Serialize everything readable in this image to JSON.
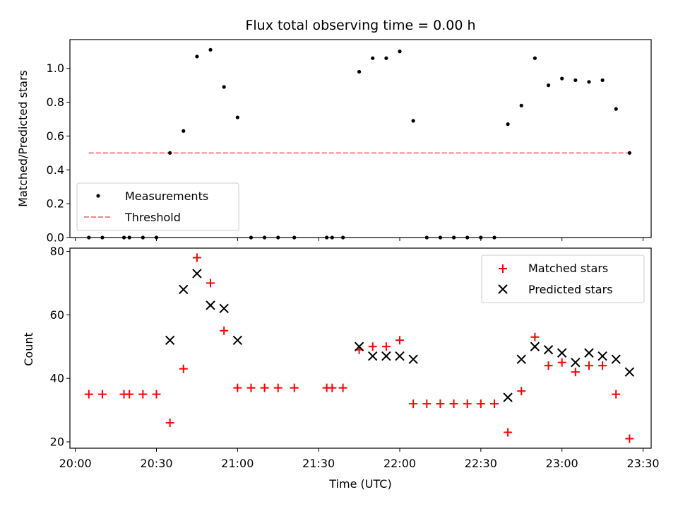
{
  "chart_data": [
    {
      "type": "scatter",
      "title": "Flux total observing time = 0.00 h",
      "xlabel": "",
      "ylabel": "Matched/Predicted stars",
      "ylim": [
        0,
        1.17
      ],
      "xlim": [
        "19:58",
        "23:33"
      ],
      "yticks": [
        0.0,
        0.2,
        0.4,
        0.6,
        0.8,
        1.0
      ],
      "ytick_labels": [
        "0.0",
        "0.2",
        "0.4",
        "0.6",
        "0.8",
        "1.0"
      ],
      "legend_position": "bottom-left",
      "series": [
        {
          "name": "Measurements",
          "marker": "dot",
          "color": "#000000",
          "x": [
            "20:05",
            "20:10",
            "20:18",
            "20:20",
            "20:25",
            "20:30",
            "20:35",
            "20:40",
            "20:45",
            "20:50",
            "20:55",
            "21:00",
            "21:05",
            "21:10",
            "21:15",
            "21:21",
            "21:33",
            "21:35",
            "21:39",
            "21:45",
            "21:50",
            "21:55",
            "22:00",
            "22:05",
            "22:10",
            "22:15",
            "22:20",
            "22:25",
            "22:30",
            "22:35",
            "22:40",
            "22:45",
            "22:50",
            "22:55",
            "23:00",
            "23:05",
            "23:10",
            "23:15",
            "23:20",
            "23:25"
          ],
          "y": [
            0,
            0,
            0,
            0,
            0,
            0,
            0.5,
            0.63,
            1.07,
            1.11,
            0.89,
            0.71,
            0,
            0,
            0,
            0,
            0,
            0,
            0,
            0.98,
            1.06,
            1.06,
            1.1,
            0.69,
            0,
            0,
            0,
            0,
            0,
            0,
            0.67,
            0.78,
            1.06,
            0.9,
            0.94,
            0.93,
            0.92,
            0.93,
            0.76,
            0.5
          ]
        },
        {
          "name": "Threshold",
          "line": "dashed",
          "color": "#ff8080",
          "x": [
            "20:05",
            "23:25"
          ],
          "y": [
            0.5,
            0.5
          ]
        }
      ]
    },
    {
      "type": "scatter",
      "title": "",
      "xlabel": "Time (UTC)",
      "ylabel": "Count",
      "ylim": [
        18,
        81
      ],
      "xlim": [
        "19:58",
        "23:33"
      ],
      "yticks": [
        20,
        40,
        60,
        80
      ],
      "ytick_labels": [
        "20",
        "40",
        "60",
        "80"
      ],
      "xticks": [
        "20:00",
        "20:30",
        "21:00",
        "21:30",
        "22:00",
        "22:30",
        "23:00",
        "23:30"
      ],
      "xtick_labels": [
        "20:00",
        "20:30",
        "21:00",
        "21:30",
        "22:00",
        "22:30",
        "23:00",
        "23:30"
      ],
      "legend_position": "top-right",
      "series": [
        {
          "name": "Matched stars",
          "marker": "plus",
          "color": "#ff0000",
          "x": [
            "20:05",
            "20:10",
            "20:18",
            "20:20",
            "20:25",
            "20:30",
            "20:35",
            "20:40",
            "20:45",
            "20:50",
            "20:55",
            "21:00",
            "21:05",
            "21:10",
            "21:15",
            "21:21",
            "21:33",
            "21:35",
            "21:39",
            "21:45",
            "21:50",
            "21:55",
            "22:00",
            "22:05",
            "22:10",
            "22:15",
            "22:20",
            "22:25",
            "22:30",
            "22:35",
            "22:40",
            "22:45",
            "22:50",
            "22:55",
            "23:00",
            "23:05",
            "23:10",
            "23:15",
            "23:20",
            "23:25"
          ],
          "y": [
            35,
            35,
            35,
            35,
            35,
            35,
            26,
            43,
            78,
            70,
            55,
            37,
            37,
            37,
            37,
            37,
            37,
            37,
            37,
            49,
            50,
            50,
            52,
            32,
            32,
            32,
            32,
            32,
            32,
            32,
            23,
            36,
            53,
            44,
            45,
            42,
            44,
            44,
            35,
            21
          ]
        },
        {
          "name": "Predicted stars",
          "marker": "x",
          "color": "#000000",
          "x": [
            "20:35",
            "20:40",
            "20:45",
            "20:50",
            "20:55",
            "21:00",
            "21:45",
            "21:50",
            "21:55",
            "22:00",
            "22:05",
            "22:40",
            "22:45",
            "22:50",
            "22:55",
            "23:00",
            "23:05",
            "23:10",
            "23:15",
            "23:20",
            "23:25"
          ],
          "y": [
            52,
            68,
            73,
            63,
            62,
            52,
            50,
            47,
            47,
            47,
            46,
            34,
            46,
            50,
            49,
            48,
            45,
            48,
            47,
            46,
            42
          ]
        }
      ]
    }
  ]
}
